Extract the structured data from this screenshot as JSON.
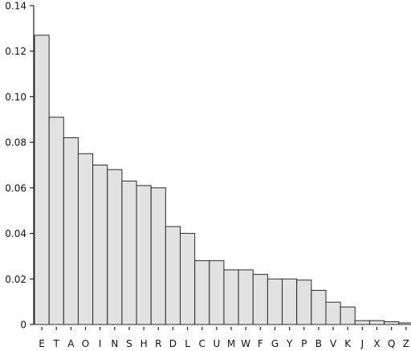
{
  "chart_data": {
    "type": "bar",
    "title": "",
    "xlabel": "",
    "ylabel": "",
    "categories": [
      "E",
      "T",
      "A",
      "O",
      "I",
      "N",
      "S",
      "H",
      "R",
      "D",
      "L",
      "C",
      "U",
      "M",
      "W",
      "F",
      "G",
      "Y",
      "P",
      "B",
      "V",
      "K",
      "J",
      "X",
      "Q",
      "Z"
    ],
    "values": [
      0.127,
      0.091,
      0.082,
      0.075,
      0.07,
      0.068,
      0.063,
      0.061,
      0.06,
      0.043,
      0.04,
      0.028,
      0.028,
      0.024,
      0.024,
      0.022,
      0.02,
      0.02,
      0.0195,
      0.015,
      0.0098,
      0.0077,
      0.0017,
      0.0017,
      0.0012,
      0.0007
    ],
    "ylim": [
      0,
      0.14
    ],
    "yticks": [
      0,
      0.02,
      0.04,
      0.06,
      0.08,
      0.1,
      0.12,
      0.14
    ],
    "ytick_labels": [
      "0",
      "0.02",
      "0.04",
      "0.06",
      "0.08",
      "0.10",
      "0.12",
      "0.14"
    ],
    "grid": false,
    "colors": {
      "bar_fill": "#e2e2e2",
      "bar_stroke": "#2b2b2b",
      "axis": "#222222"
    }
  }
}
